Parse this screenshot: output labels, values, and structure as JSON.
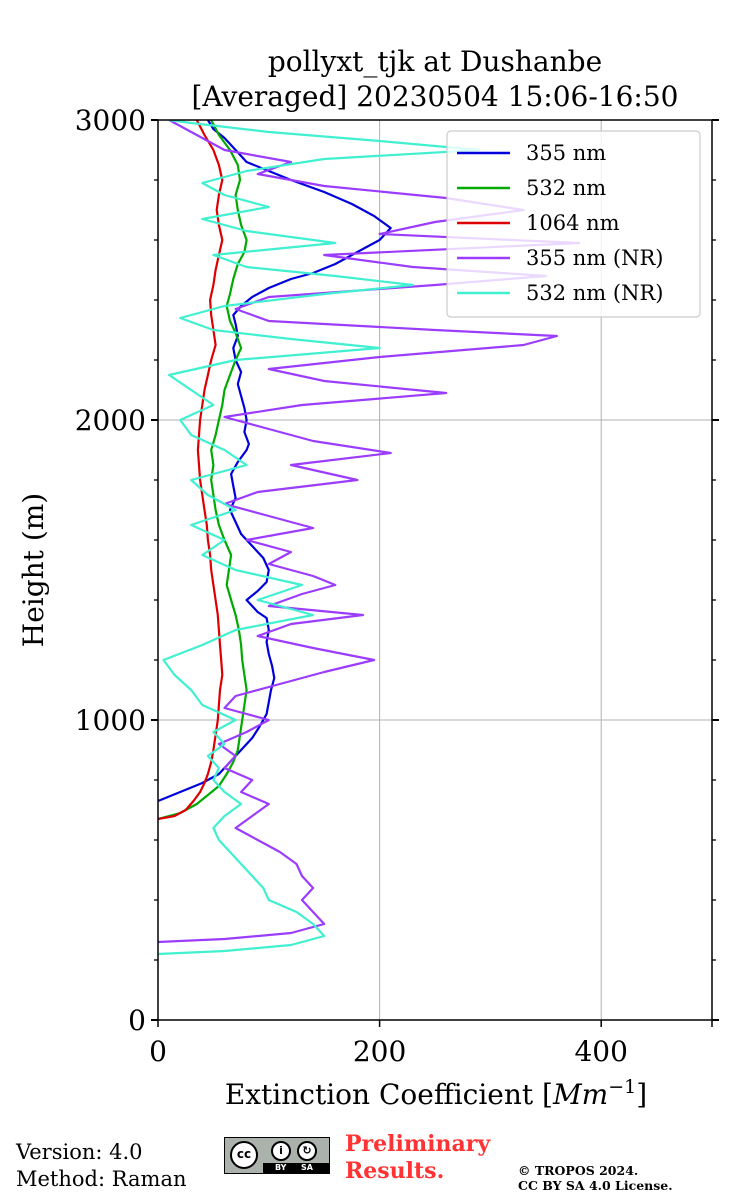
{
  "footer": {
    "version": "Version: 4.0",
    "method": "Method: Raman",
    "preliminary_line1": "Preliminary",
    "preliminary_line2": "Results.",
    "copyright_line1": "© TROPOS 2024.",
    "copyright_line2": "CC BY SA 4.0 License.",
    "license_badge": {
      "cc": "cc",
      "by": "BY",
      "sa": "SA",
      "by_icon": "i",
      "sa_icon": "↻"
    }
  },
  "chart_data": {
    "type": "line",
    "title": "pollyxt_tjk at Dushanbe",
    "subtitle": "[Averaged] 20230504 15:06-16:50",
    "xlabel": "Extinction Coefficient [",
    "xlabel_unit": "Mm",
    "xlabel_exp": "−1",
    "xlabel_close": "]",
    "ylabel": "Height (m)",
    "xlim": [
      0,
      500
    ],
    "ylim": [
      0,
      3000
    ],
    "xticks": [
      0,
      200,
      400
    ],
    "xtick_labels": [
      "0",
      "200",
      "400"
    ],
    "yticks": [
      0,
      1000,
      2000,
      3000
    ],
    "ytick_labels": [
      "0",
      "1000",
      "2000",
      "3000"
    ],
    "grid": true,
    "legend_position": "top-right",
    "series": [
      {
        "name": "355 nm",
        "color": "#0000dd",
        "points": [
          [
            0,
            730
          ],
          [
            20,
            760
          ],
          [
            40,
            790
          ],
          [
            55,
            820
          ],
          [
            65,
            860
          ],
          [
            75,
            900
          ],
          [
            85,
            940
          ],
          [
            92,
            980
          ],
          [
            98,
            1020
          ],
          [
            100,
            1060
          ],
          [
            102,
            1100
          ],
          [
            105,
            1140
          ],
          [
            103,
            1180
          ],
          [
            100,
            1220
          ],
          [
            98,
            1260
          ],
          [
            100,
            1300
          ],
          [
            98,
            1340
          ],
          [
            90,
            1360
          ],
          [
            80,
            1400
          ],
          [
            90,
            1430
          ],
          [
            98,
            1460
          ],
          [
            100,
            1500
          ],
          [
            95,
            1540
          ],
          [
            85,
            1580
          ],
          [
            75,
            1620
          ],
          [
            70,
            1660
          ],
          [
            65,
            1700
          ],
          [
            70,
            1740
          ],
          [
            68,
            1780
          ],
          [
            66,
            1820
          ],
          [
            72,
            1860
          ],
          [
            80,
            1900
          ],
          [
            82,
            1920
          ],
          [
            78,
            1960
          ],
          [
            80,
            2000
          ],
          [
            78,
            2040
          ],
          [
            75,
            2080
          ],
          [
            72,
            2120
          ],
          [
            75,
            2160
          ],
          [
            70,
            2200
          ],
          [
            68,
            2240
          ],
          [
            72,
            2280
          ],
          [
            70,
            2320
          ],
          [
            68,
            2350
          ],
          [
            75,
            2380
          ],
          [
            85,
            2410
          ],
          [
            100,
            2440
          ],
          [
            120,
            2470
          ],
          [
            140,
            2490
          ],
          [
            160,
            2520
          ],
          [
            180,
            2560
          ],
          [
            200,
            2600
          ],
          [
            210,
            2640
          ],
          [
            195,
            2680
          ],
          [
            175,
            2720
          ],
          [
            150,
            2760
          ],
          [
            120,
            2800
          ],
          [
            100,
            2830
          ],
          [
            80,
            2860
          ],
          [
            70,
            2900
          ],
          [
            60,
            2940
          ],
          [
            50,
            2970
          ],
          [
            45,
            3000
          ]
        ]
      },
      {
        "name": "532 nm",
        "color": "#00aa00",
        "points": [
          [
            0,
            670
          ],
          [
            20,
            690
          ],
          [
            35,
            720
          ],
          [
            45,
            750
          ],
          [
            55,
            780
          ],
          [
            62,
            820
          ],
          [
            68,
            860
          ],
          [
            72,
            900
          ],
          [
            74,
            950
          ],
          [
            76,
            1000
          ],
          [
            78,
            1050
          ],
          [
            80,
            1100
          ],
          [
            78,
            1150
          ],
          [
            76,
            1200
          ],
          [
            75,
            1250
          ],
          [
            73,
            1300
          ],
          [
            70,
            1350
          ],
          [
            66,
            1400
          ],
          [
            62,
            1450
          ],
          [
            64,
            1500
          ],
          [
            66,
            1550
          ],
          [
            60,
            1600
          ],
          [
            55,
            1650
          ],
          [
            52,
            1700
          ],
          [
            50,
            1750
          ],
          [
            48,
            1800
          ],
          [
            50,
            1850
          ],
          [
            48,
            1900
          ],
          [
            52,
            1950
          ],
          [
            55,
            2000
          ],
          [
            58,
            2050
          ],
          [
            60,
            2100
          ],
          [
            65,
            2150
          ],
          [
            70,
            2200
          ],
          [
            75,
            2240
          ],
          [
            70,
            2290
          ],
          [
            65,
            2330
          ],
          [
            62,
            2380
          ],
          [
            65,
            2420
          ],
          [
            68,
            2470
          ],
          [
            72,
            2520
          ],
          [
            78,
            2560
          ],
          [
            80,
            2600
          ],
          [
            75,
            2650
          ],
          [
            72,
            2700
          ],
          [
            70,
            2750
          ],
          [
            74,
            2800
          ],
          [
            72,
            2850
          ],
          [
            65,
            2900
          ],
          [
            55,
            2950
          ],
          [
            48,
            3000
          ]
        ]
      },
      {
        "name": "1064 nm",
        "color": "#dd0000",
        "points": [
          [
            0,
            670
          ],
          [
            15,
            680
          ],
          [
            25,
            700
          ],
          [
            32,
            730
          ],
          [
            38,
            760
          ],
          [
            42,
            790
          ],
          [
            45,
            820
          ],
          [
            48,
            860
          ],
          [
            50,
            900
          ],
          [
            52,
            950
          ],
          [
            54,
            1000
          ],
          [
            55,
            1050
          ],
          [
            56,
            1100
          ],
          [
            58,
            1150
          ],
          [
            57,
            1200
          ],
          [
            56,
            1250
          ],
          [
            55,
            1300
          ],
          [
            54,
            1350
          ],
          [
            52,
            1400
          ],
          [
            50,
            1450
          ],
          [
            48,
            1500
          ],
          [
            47,
            1550
          ],
          [
            45,
            1600
          ],
          [
            44,
            1650
          ],
          [
            42,
            1700
          ],
          [
            40,
            1750
          ],
          [
            38,
            1800
          ],
          [
            37,
            1850
          ],
          [
            36,
            1900
          ],
          [
            37,
            1950
          ],
          [
            38,
            2000
          ],
          [
            40,
            2050
          ],
          [
            42,
            2100
          ],
          [
            45,
            2150
          ],
          [
            48,
            2200
          ],
          [
            52,
            2250
          ],
          [
            50,
            2300
          ],
          [
            48,
            2350
          ],
          [
            47,
            2400
          ],
          [
            50,
            2450
          ],
          [
            52,
            2500
          ],
          [
            55,
            2550
          ],
          [
            58,
            2600
          ],
          [
            55,
            2650
          ],
          [
            53,
            2700
          ],
          [
            55,
            2750
          ],
          [
            58,
            2800
          ],
          [
            55,
            2850
          ],
          [
            50,
            2900
          ],
          [
            42,
            2950
          ],
          [
            35,
            3000
          ]
        ]
      },
      {
        "name": "355 nm (NR)",
        "color": "#9b3cff",
        "points": [
          [
            0,
            260
          ],
          [
            60,
            270
          ],
          [
            120,
            290
          ],
          [
            150,
            320
          ],
          [
            140,
            360
          ],
          [
            130,
            400
          ],
          [
            140,
            440
          ],
          [
            130,
            480
          ],
          [
            125,
            520
          ],
          [
            110,
            560
          ],
          [
            90,
            600
          ],
          [
            70,
            640
          ],
          [
            85,
            680
          ],
          [
            100,
            720
          ],
          [
            75,
            760
          ],
          [
            85,
            800
          ],
          [
            60,
            840
          ],
          [
            70,
            880
          ],
          [
            55,
            920
          ],
          [
            80,
            960
          ],
          [
            100,
            1000
          ],
          [
            60,
            1040
          ],
          [
            70,
            1080
          ],
          [
            110,
            1120
          ],
          [
            150,
            1160
          ],
          [
            195,
            1200
          ],
          [
            140,
            1240
          ],
          [
            90,
            1280
          ],
          [
            120,
            1320
          ],
          [
            185,
            1350
          ],
          [
            100,
            1380
          ],
          [
            130,
            1420
          ],
          [
            160,
            1450
          ],
          [
            140,
            1480
          ],
          [
            100,
            1520
          ],
          [
            120,
            1560
          ],
          [
            80,
            1600
          ],
          [
            140,
            1640
          ],
          [
            100,
            1680
          ],
          [
            60,
            1720
          ],
          [
            90,
            1760
          ],
          [
            180,
            1800
          ],
          [
            120,
            1850
          ],
          [
            210,
            1890
          ],
          [
            140,
            1930
          ],
          [
            100,
            1970
          ],
          [
            60,
            2010
          ],
          [
            130,
            2050
          ],
          [
            260,
            2090
          ],
          [
            150,
            2130
          ],
          [
            100,
            2170
          ],
          [
            200,
            2210
          ],
          [
            330,
            2250
          ],
          [
            360,
            2280
          ],
          [
            250,
            2300
          ],
          [
            100,
            2330
          ],
          [
            70,
            2370
          ],
          [
            100,
            2410
          ],
          [
            250,
            2450
          ],
          [
            350,
            2480
          ],
          [
            230,
            2510
          ],
          [
            150,
            2550
          ],
          [
            380,
            2590
          ],
          [
            200,
            2620
          ],
          [
            250,
            2660
          ],
          [
            330,
            2700
          ],
          [
            260,
            2740
          ],
          [
            150,
            2780
          ],
          [
            90,
            2820
          ],
          [
            120,
            2860
          ],
          [
            60,
            2900
          ],
          [
            40,
            2940
          ],
          [
            20,
            2980
          ],
          [
            10,
            3000
          ]
        ]
      },
      {
        "name": "532 nm (NR)",
        "color": "#40f0d0",
        "points": [
          [
            0,
            220
          ],
          [
            60,
            230
          ],
          [
            120,
            250
          ],
          [
            150,
            280
          ],
          [
            140,
            320
          ],
          [
            125,
            360
          ],
          [
            100,
            400
          ],
          [
            95,
            440
          ],
          [
            85,
            480
          ],
          [
            75,
            520
          ],
          [
            65,
            560
          ],
          [
            55,
            600
          ],
          [
            50,
            640
          ],
          [
            60,
            680
          ],
          [
            75,
            720
          ],
          [
            60,
            760
          ],
          [
            50,
            800
          ],
          [
            55,
            840
          ],
          [
            45,
            880
          ],
          [
            60,
            920
          ],
          [
            50,
            960
          ],
          [
            70,
            1000
          ],
          [
            40,
            1050
          ],
          [
            30,
            1100
          ],
          [
            15,
            1150
          ],
          [
            5,
            1200
          ],
          [
            40,
            1250
          ],
          [
            70,
            1300
          ],
          [
            140,
            1350
          ],
          [
            90,
            1400
          ],
          [
            130,
            1450
          ],
          [
            70,
            1500
          ],
          [
            40,
            1550
          ],
          [
            60,
            1600
          ],
          [
            30,
            1650
          ],
          [
            70,
            1700
          ],
          [
            45,
            1750
          ],
          [
            30,
            1800
          ],
          [
            80,
            1850
          ],
          [
            60,
            1900
          ],
          [
            30,
            1950
          ],
          [
            20,
            2000
          ],
          [
            50,
            2050
          ],
          [
            30,
            2100
          ],
          [
            10,
            2150
          ],
          [
            70,
            2200
          ],
          [
            200,
            2240
          ],
          [
            120,
            2270
          ],
          [
            50,
            2300
          ],
          [
            20,
            2340
          ],
          [
            60,
            2380
          ],
          [
            150,
            2420
          ],
          [
            230,
            2450
          ],
          [
            160,
            2480
          ],
          [
            80,
            2510
          ],
          [
            50,
            2550
          ],
          [
            160,
            2590
          ],
          [
            80,
            2630
          ],
          [
            40,
            2670
          ],
          [
            100,
            2710
          ],
          [
            60,
            2750
          ],
          [
            40,
            2790
          ],
          [
            80,
            2830
          ],
          [
            150,
            2870
          ],
          [
            290,
            2900
          ],
          [
            200,
            2930
          ],
          [
            100,
            2960
          ],
          [
            30,
            2990
          ],
          [
            10,
            3000
          ]
        ]
      }
    ]
  }
}
